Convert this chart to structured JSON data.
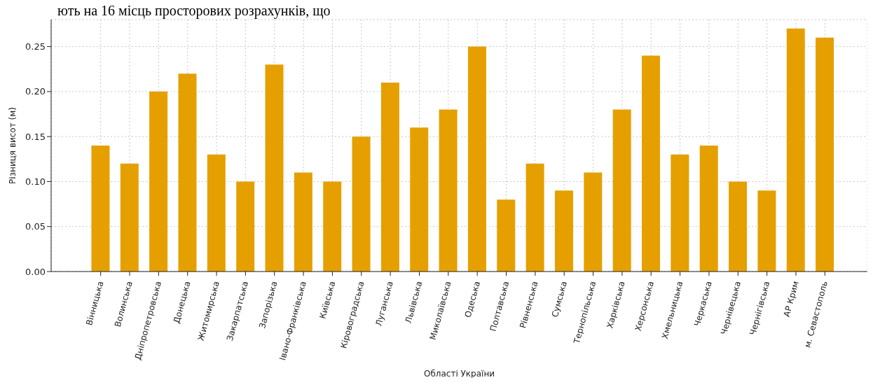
{
  "chart_data": {
    "type": "bar",
    "xlabel": "Області України",
    "ylabel": "Різниця висот (м)",
    "annotations": [
      "ють на 16 місць просторових розрахунків, що"
    ],
    "categories": [
      "Вінницька",
      "Волинська",
      "Дніпропетровська",
      "Донецька",
      "Житомирська",
      "Закарпатська",
      "Запорізька",
      "Івано-Франківська",
      "Київська",
      "Кіровоградська",
      "Луганська",
      "Львівська",
      "Миколаївська",
      "Одеська",
      "Полтавська",
      "Рівненська",
      "Сумська",
      "Тернопільська",
      "Харківська",
      "Херсонська",
      "Хмельницька",
      "Черкаська",
      "Чернівецька",
      "Чернігівська",
      "АР Крим",
      "м. Севастополь"
    ],
    "values": [
      0.14,
      0.12,
      0.2,
      0.22,
      0.13,
      0.1,
      0.23,
      0.11,
      0.1,
      0.15,
      0.21,
      0.16,
      0.18,
      0.25,
      0.08,
      0.12,
      0.09,
      0.11,
      0.18,
      0.24,
      0.13,
      0.14,
      0.1,
      0.09,
      0.27,
      0.26
    ],
    "color": "#e5a000",
    "ylim": [
      0,
      0.28
    ],
    "yticks": [
      {
        "value": 0,
        "label": "0.00"
      },
      0.05,
      {
        "value": 0.1,
        "label": "0.10"
      },
      0.15,
      {
        "value": 0.2,
        "label": "0.20"
      },
      0.25
    ],
    "grid": true
  }
}
